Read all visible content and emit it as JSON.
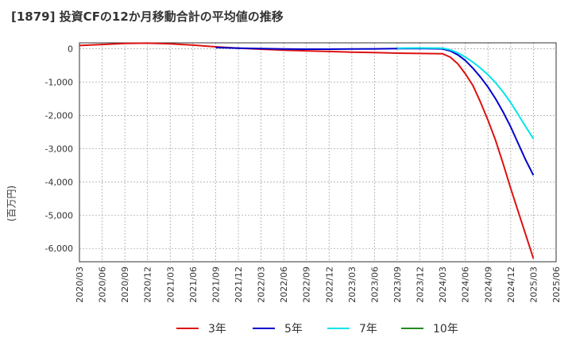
{
  "title": "[1879]  投資CFの12か月移動合計の平均値の推移",
  "y_unit": "(百万円)",
  "chart_data": {
    "type": "line",
    "title": "[1879]  投資CFの12か月移動合計の平均値の推移",
    "ylabel": "(百万円)",
    "xlabel": "",
    "ylim": [
      -6400,
      180
    ],
    "y_ticks": [
      0,
      -1000,
      -2000,
      -3000,
      -4000,
      -5000,
      -6000
    ],
    "y_tick_labels": [
      "0",
      "-1,000",
      "-2,000",
      "-3,000",
      "-4,000",
      "-5,000",
      "-6,000"
    ],
    "x_tick_labels": [
      "2020/03",
      "2020/06",
      "2020/09",
      "2020/12",
      "2021/03",
      "2021/06",
      "2021/09",
      "2021/12",
      "2022/03",
      "2022/06",
      "2022/09",
      "2022/12",
      "2023/03",
      "2023/06",
      "2023/09",
      "2023/12",
      "2024/03",
      "2024/06",
      "2024/09",
      "2024/12",
      "2025/03",
      "2025/06"
    ],
    "grid": true,
    "legend_position": "bottom",
    "series": [
      {
        "name": "3年",
        "color": "#dd1111",
        "x": [
          "2020/03",
          "2020/06",
          "2020/09",
          "2020/12",
          "2021/03",
          "2021/06",
          "2021/09",
          "2021/12",
          "2022/03",
          "2022/06",
          "2022/09",
          "2022/12",
          "2023/03",
          "2023/06",
          "2023/09",
          "2023/12",
          "2024/03",
          "2024/04",
          "2024/05",
          "2024/06",
          "2024/07",
          "2024/08",
          "2024/09",
          "2024/10",
          "2024/11",
          "2024/12",
          "2025/01",
          "2025/02",
          "2025/03"
        ],
        "y": [
          100,
          130,
          160,
          170,
          150,
          110,
          60,
          20,
          -10,
          -40,
          -60,
          -80,
          -100,
          -110,
          -130,
          -140,
          -150,
          -250,
          -450,
          -750,
          -1100,
          -1600,
          -2150,
          -2750,
          -3450,
          -4200,
          -4900,
          -5600,
          -6300
        ]
      },
      {
        "name": "5年",
        "color": "#0000cc",
        "x": [
          "2021/09",
          "2021/12",
          "2022/03",
          "2022/06",
          "2022/09",
          "2022/12",
          "2023/03",
          "2023/06",
          "2023/09",
          "2023/12",
          "2024/03",
          "2024/04",
          "2024/05",
          "2024/06",
          "2024/07",
          "2024/08",
          "2024/09",
          "2024/10",
          "2024/11",
          "2024/12",
          "2025/01",
          "2025/02",
          "2025/03"
        ],
        "y": [
          40,
          20,
          5,
          -5,
          -10,
          -10,
          -5,
          0,
          5,
          10,
          0,
          -60,
          -180,
          -350,
          -580,
          -850,
          -1150,
          -1500,
          -1900,
          -2350,
          -2850,
          -3350,
          -3800
        ]
      },
      {
        "name": "7年",
        "color": "#00e5ee",
        "x": [
          "2023/09",
          "2023/12",
          "2024/03",
          "2024/04",
          "2024/05",
          "2024/06",
          "2024/07",
          "2024/08",
          "2024/09",
          "2024/10",
          "2024/11",
          "2024/12",
          "2025/01",
          "2025/02",
          "2025/03"
        ],
        "y": [
          20,
          25,
          20,
          -30,
          -120,
          -250,
          -400,
          -580,
          -780,
          -1020,
          -1300,
          -1620,
          -1980,
          -2350,
          -2700
        ]
      },
      {
        "name": "10年",
        "color": "#228b22",
        "x": [],
        "y": []
      }
    ]
  }
}
